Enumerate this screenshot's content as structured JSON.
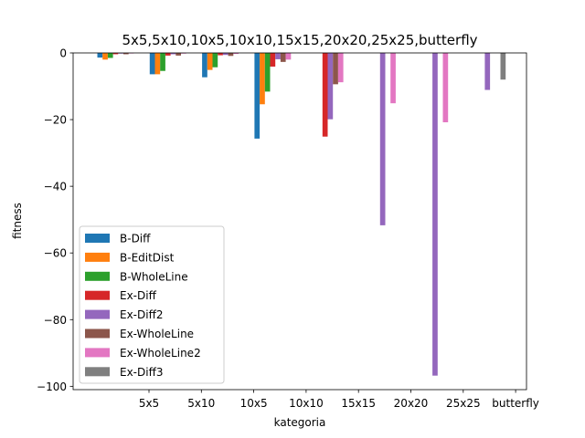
{
  "chart_data": {
    "type": "bar",
    "title": "5x5,5x10,10x5,10x10,15x15,20x20,25x25,butterfly",
    "xlabel": "kategoria",
    "ylabel": "fitness",
    "ylim": [
      -101,
      0
    ],
    "yticks": [
      0,
      -20,
      -40,
      -60,
      -80,
      -100
    ],
    "yticklabels": [
      "0",
      "−20",
      "−40",
      "−60",
      "−80",
      "−100"
    ],
    "categories": [
      "5x5",
      "5x10",
      "10x5",
      "10x10",
      "15x15",
      "20x20",
      "25x25",
      "butterfly"
    ],
    "legend_position": "lower-left",
    "grid": false,
    "series": [
      {
        "name": "B-Diff",
        "color": "#1f77b4",
        "values": [
          -1.4,
          -6.4,
          -7.3,
          -25.7,
          0,
          0,
          0,
          0
        ]
      },
      {
        "name": "B-EditDist",
        "color": "#ff7f0e",
        "values": [
          -2.0,
          -6.4,
          -5.1,
          -15.4,
          0,
          0,
          0,
          0
        ]
      },
      {
        "name": "B-WholeLine",
        "color": "#2ca02c",
        "values": [
          -1.5,
          -5.4,
          -4.3,
          -11.6,
          0,
          0,
          0,
          0
        ]
      },
      {
        "name": "Ex-Diff",
        "color": "#d62728",
        "values": [
          -0.4,
          -0.8,
          -0.7,
          -4.1,
          -25.1,
          0,
          0,
          0
        ]
      },
      {
        "name": "Ex-Diff2",
        "color": "#9467bd",
        "values": [
          -0.2,
          -0.4,
          -0.6,
          -1.9,
          -19.9,
          -51.7,
          -96.8,
          -11.1
        ]
      },
      {
        "name": "Ex-WholeLine",
        "color": "#8c564b",
        "values": [
          -0.4,
          -0.8,
          -0.9,
          -2.7,
          -9.4,
          0,
          0,
          0
        ]
      },
      {
        "name": "Ex-WholeLine2",
        "color": "#e377c2",
        "values": [
          -0.1,
          -0.2,
          -0.3,
          -2.0,
          -8.8,
          -15.1,
          -20.8,
          0
        ]
      },
      {
        "name": "Ex-Diff3",
        "color": "#7f7f7f",
        "values": [
          0,
          0,
          0,
          0,
          0,
          0,
          0,
          -8.0
        ]
      }
    ]
  }
}
